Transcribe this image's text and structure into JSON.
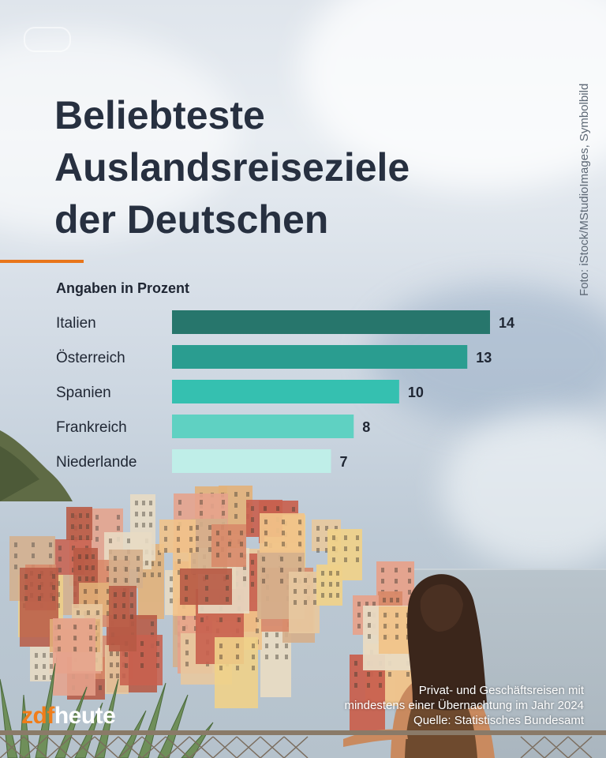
{
  "title": "Beliebteste\nAuslandsreiseziele\nder Deutschen",
  "photo_credit": "Foto: iStock/MStudioImages, Symbolbild",
  "brand": {
    "part1": "zdf",
    "part2": "heute"
  },
  "footnote": {
    "line1": "Privat- und Geschäftsreisen mit",
    "line2": "mindestens einer Übernachtung im Jahr 2024",
    "source": "Quelle: Statistisches Bundesamt"
  },
  "colors": {
    "accent": "#e8751a",
    "title": "#273040",
    "bars": [
      "#27766c",
      "#2a9d90",
      "#35c0b0",
      "#5fd1c2",
      "#bfeee8"
    ]
  },
  "chart_data": {
    "type": "bar",
    "orientation": "horizontal",
    "subtitle": "Angaben in Prozent",
    "unit": "%",
    "categories": [
      "Italien",
      "Österreich",
      "Spanien",
      "Frankreich",
      "Niederlande"
    ],
    "values": [
      14,
      13,
      10,
      8,
      7
    ],
    "data_labels": [
      "14",
      "13",
      "10",
      "8",
      "7"
    ],
    "xlim": [
      0,
      14
    ],
    "grid": false,
    "legend": "none"
  }
}
